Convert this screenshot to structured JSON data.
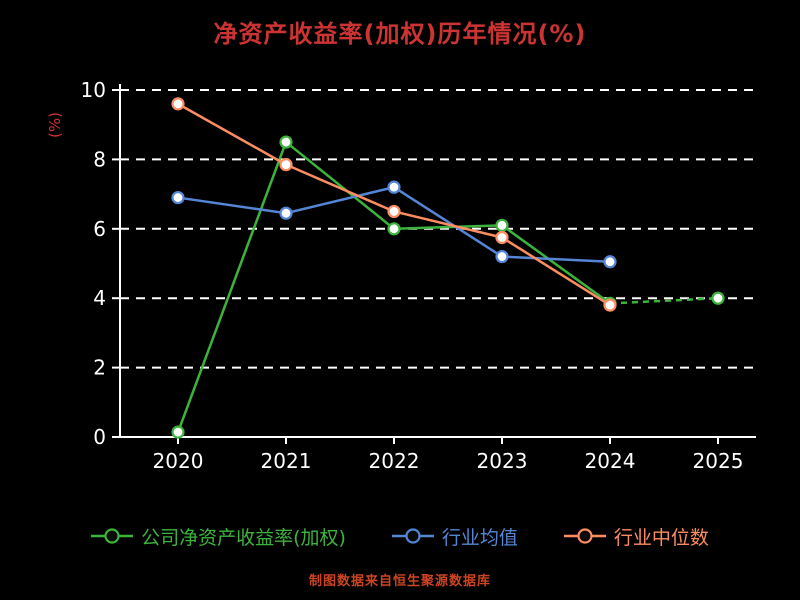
{
  "chart": {
    "title": "净资产收益率(加权)历年情况(%)",
    "y_axis_label": "(%)",
    "source_note": "制图数据来自恒生聚源数据库",
    "colors": {
      "background": "#000000",
      "title": "#cc3333",
      "axis_text": "#ffffff",
      "grid": "#ffffff",
      "source_note": "#cc4422",
      "y_axis_label": "#cc3333"
    }
  },
  "chart_data": {
    "type": "line",
    "categories": [
      "2020",
      "2021",
      "2022",
      "2023",
      "2024",
      "2025"
    ],
    "yticks": [
      0,
      2,
      4,
      6,
      8,
      10
    ],
    "ylim": [
      0,
      10
    ],
    "grid": true,
    "legend_position": "bottom",
    "series": [
      {
        "name": "公司净资产收益率(加权)",
        "color": "#3cb43c",
        "values": [
          0.14,
          8.5,
          6.0,
          6.1,
          3.85,
          4.0
        ],
        "dashed_from": 4
      },
      {
        "name": "行业均值",
        "color": "#5585d5",
        "values": [
          6.9,
          6.45,
          7.2,
          5.2,
          5.05,
          null
        ],
        "dashed_from": null
      },
      {
        "name": "行业中位数",
        "color": "#fc8d62",
        "values": [
          9.6,
          7.85,
          6.5,
          5.75,
          3.8,
          null
        ],
        "dashed_from": null
      }
    ]
  }
}
